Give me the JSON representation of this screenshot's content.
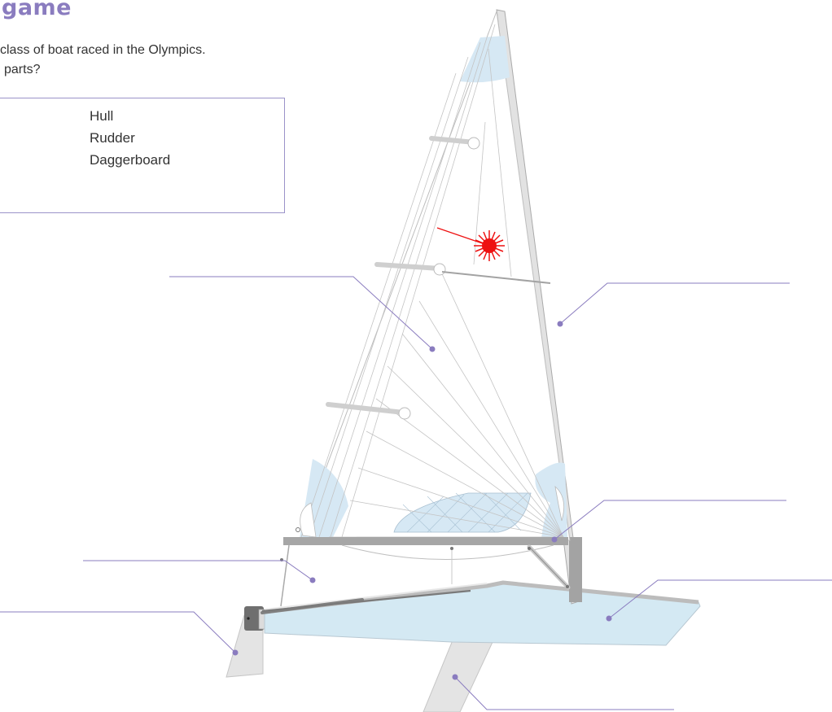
{
  "game": {
    "title": "game",
    "intro_line1": "class of boat raced in the Olympics.",
    "intro_line2": "parts?"
  },
  "answers": [
    {
      "label": "Hull"
    },
    {
      "label": "Rudder"
    },
    {
      "label": "Daggerboard"
    }
  ],
  "label_points": [
    {
      "name": "sail"
    },
    {
      "name": "mast"
    },
    {
      "name": "boom"
    },
    {
      "name": "tiller"
    },
    {
      "name": "rudder"
    },
    {
      "name": "hull"
    },
    {
      "name": "daggerboard"
    }
  ],
  "colors": {
    "accent": "#8a7cbf",
    "hull_fill": "#d4e9f3",
    "sail_panel": "#d6e8f4",
    "foil_fill": "#e4e4e4",
    "pointer": "#ee1111"
  }
}
